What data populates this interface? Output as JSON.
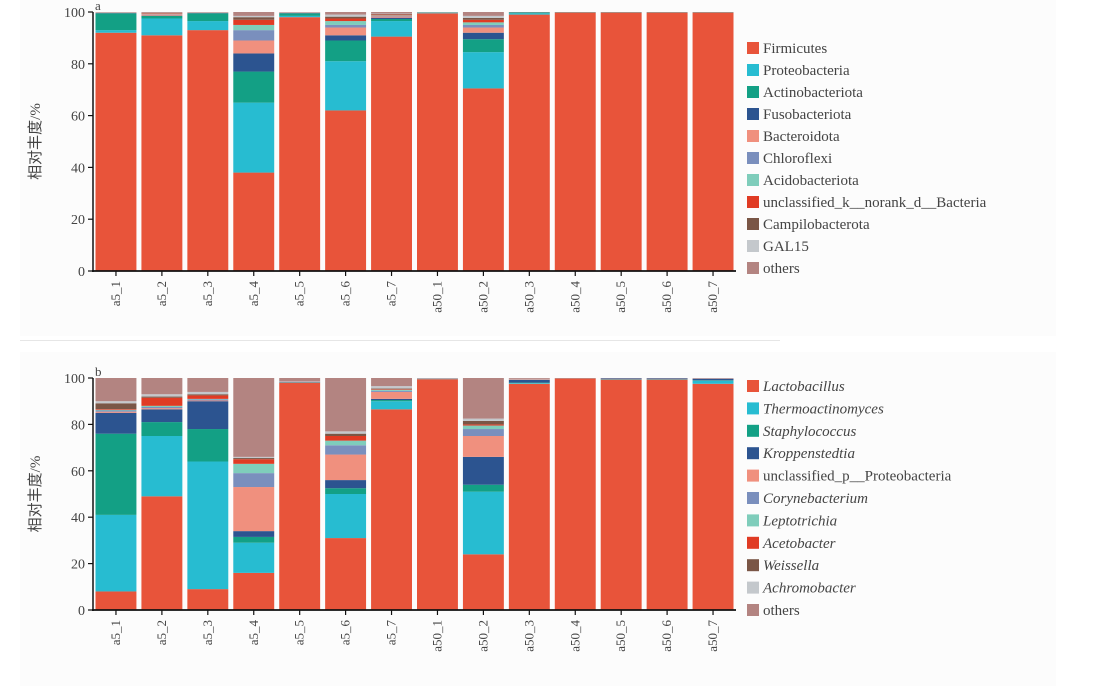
{
  "chart_data": [
    {
      "type": "bar",
      "stacked": true,
      "panel_label": "a",
      "title": "",
      "xlabel": "",
      "ylabel": "相对丰度/%",
      "ylim": [
        0,
        100
      ],
      "yticks": [
        "0",
        "20",
        "40",
        "60",
        "80",
        "100"
      ],
      "grid": false,
      "legend_position": "right",
      "legend_italic": false,
      "categories": [
        "a5_1",
        "a5_2",
        "a5_3",
        "a5_4",
        "a5_5",
        "a5_6",
        "a5_7",
        "a50_1",
        "a50_2",
        "a50_3",
        "a50_4",
        "a50_5",
        "a50_6",
        "a50_7"
      ],
      "series": [
        {
          "name": "Firmicutes",
          "color": "#e8543a",
          "values": [
            92,
            91,
            93,
            38,
            98,
            62,
            90.5,
            99.5,
            70.5,
            99,
            99.8,
            99.8,
            99.8,
            99.8
          ]
        },
        {
          "name": "Proteobacteria",
          "color": "#27bcd1",
          "values": [
            1,
            6.5,
            3.5,
            27,
            0.5,
            19,
            6,
            0.2,
            14,
            0.5,
            0.1,
            0.1,
            0.1,
            0.1
          ]
        },
        {
          "name": "Actinobacteriota",
          "color": "#13a085",
          "values": [
            6.5,
            1,
            3,
            12,
            1,
            8,
            0.8,
            0.1,
            5,
            0.3,
            0.05,
            0.05,
            0.05,
            0.05
          ]
        },
        {
          "name": "Fusobacteriota",
          "color": "#2c5490",
          "values": [
            0.1,
            0.1,
            0.1,
            7,
            0.1,
            2,
            0.5,
            0.05,
            2.5,
            0.1,
            0.01,
            0.01,
            0.01,
            0.01
          ]
        },
        {
          "name": "Bacteroidota",
          "color": "#f0907e",
          "values": [
            0.1,
            0.5,
            0.1,
            5,
            0.1,
            3,
            0.5,
            0.05,
            2,
            0.05,
            0.01,
            0.01,
            0.01,
            0.01
          ]
        },
        {
          "name": "Chloroflexi",
          "color": "#7a8fbd",
          "values": [
            0.05,
            0.1,
            0.05,
            4,
            0.05,
            1,
            0.2,
            0.02,
            1,
            0.02,
            0.01,
            0.01,
            0.01,
            0.01
          ]
        },
        {
          "name": "Acidobacteriota",
          "color": "#7fcdbb",
          "values": [
            0.05,
            0.1,
            0.05,
            2,
            0.05,
            1.5,
            0.2,
            0.02,
            1,
            0.01,
            0.01,
            0.01,
            0.01,
            0.01
          ]
        },
        {
          "name": "unclassified_k__norank_d__Bacteria",
          "color": "#e03b24",
          "values": [
            0.05,
            0.2,
            0.05,
            2,
            0.05,
            1,
            0.3,
            0.02,
            1,
            0.01,
            0.01,
            0.01,
            0.01,
            0.01
          ]
        },
        {
          "name": "Campilobacterota",
          "color": "#7a5646",
          "values": [
            0.02,
            0.1,
            0.02,
            1,
            0.02,
            0.7,
            0.2,
            0.01,
            0.7,
            0.01,
            0.0,
            0.0,
            0.0,
            0.0
          ]
        },
        {
          "name": "GAL15",
          "color": "#c4c8cc",
          "values": [
            0.03,
            0.1,
            0.03,
            0.5,
            0.03,
            0.8,
            0.2,
            0.01,
            0.8,
            0.0,
            0.0,
            0.0,
            0.0,
            0.0
          ]
        },
        {
          "name": "others",
          "color": "#b38481",
          "values": [
            0.1,
            0.3,
            0.1,
            1.5,
            0.1,
            1,
            0.6,
            0.0,
            1.5,
            0.0,
            0.0,
            0.0,
            0.0,
            0.0
          ]
        }
      ]
    },
    {
      "type": "bar",
      "stacked": true,
      "panel_label": "b",
      "title": "",
      "xlabel": "",
      "ylabel": "相对丰度/%",
      "ylim": [
        0,
        100
      ],
      "yticks": [
        "0",
        "20",
        "40",
        "60",
        "80",
        "100"
      ],
      "grid": false,
      "legend_position": "right",
      "legend_italic": true,
      "categories": [
        "a5_1",
        "a5_2",
        "a5_3",
        "a5_4",
        "a5_5",
        "a5_6",
        "a5_7",
        "a50_1",
        "a50_2",
        "a50_3",
        "a50_4",
        "a50_5",
        "a50_6",
        "a50_7"
      ],
      "series": [
        {
          "name": "Lactobacillus",
          "italic": true,
          "color": "#e8543a",
          "values": [
            8,
            49,
            9,
            16,
            98,
            31,
            86.5,
            99.5,
            24,
            97.5,
            99.8,
            99.3,
            99.3,
            97.5
          ]
        },
        {
          "name": "Thermoactinomyces",
          "italic": true,
          "color": "#27bcd1",
          "values": [
            33,
            26,
            55,
            13,
            0.1,
            19,
            3.5,
            0.1,
            27,
            0.3,
            0.05,
            0.1,
            0.1,
            1.3
          ]
        },
        {
          "name": "Staphylococcus",
          "italic": true,
          "color": "#13a085",
          "values": [
            35,
            6,
            14,
            2.5,
            0.1,
            2.5,
            0.5,
            0.05,
            3,
            0.2,
            0.02,
            0.1,
            0.1,
            0.2
          ]
        },
        {
          "name": "Kroppenstedtia",
          "italic": true,
          "color": "#2c5490",
          "values": [
            9,
            5.5,
            12,
            2.5,
            0.1,
            3.5,
            0.5,
            0.05,
            12,
            1.2,
            0.03,
            0.3,
            0.3,
            0.7
          ]
        },
        {
          "name": "unclassified_p__Proteobacteria",
          "italic": false,
          "color": "#f0907e",
          "values": [
            0.5,
            0.5,
            0.3,
            19,
            0.1,
            11,
            3,
            0.05,
            9,
            0.2,
            0.02,
            0.05,
            0.05,
            0.1
          ]
        },
        {
          "name": "Corynebacterium",
          "italic": true,
          "color": "#7a8fbd",
          "values": [
            0.5,
            0.5,
            0.5,
            6,
            0.1,
            4,
            0.5,
            0.05,
            3,
            0.1,
            0.01,
            0.05,
            0.05,
            0.05
          ]
        },
        {
          "name": "Leptotrichia",
          "italic": true,
          "color": "#7fcdbb",
          "values": [
            0.3,
            0.5,
            0.2,
            4,
            0.05,
            2,
            0.5,
            0.02,
            1.5,
            0.05,
            0.01,
            0.02,
            0.02,
            0.02
          ]
        },
        {
          "name": "Acetobacter",
          "italic": true,
          "color": "#e03b24",
          "values": [
            0.3,
            3.5,
            1.5,
            2,
            0.05,
            2,
            0.3,
            0.02,
            0.5,
            0.05,
            0.01,
            0.02,
            0.02,
            0.02
          ]
        },
        {
          "name": "Weissella",
          "italic": true,
          "color": "#7a5646",
          "values": [
            2.5,
            0.5,
            0.5,
            0.5,
            0.05,
            1,
            0.2,
            0.02,
            1.5,
            0.05,
            0.01,
            0.01,
            0.01,
            0.01
          ]
        },
        {
          "name": "Achromobacter",
          "italic": true,
          "color": "#c4c8cc",
          "values": [
            0.9,
            1,
            1,
            0.5,
            0.05,
            1,
            1,
            0.02,
            1,
            0.05,
            0.01,
            0.01,
            0.01,
            0.01
          ]
        },
        {
          "name": "others",
          "italic": false,
          "color": "#b38481",
          "values": [
            10,
            7.5,
            6,
            34,
            1.3,
            23,
            3.5,
            0.1,
            17.5,
            0.3,
            0.03,
            0.04,
            0.04,
            0.09
          ]
        }
      ]
    }
  ]
}
